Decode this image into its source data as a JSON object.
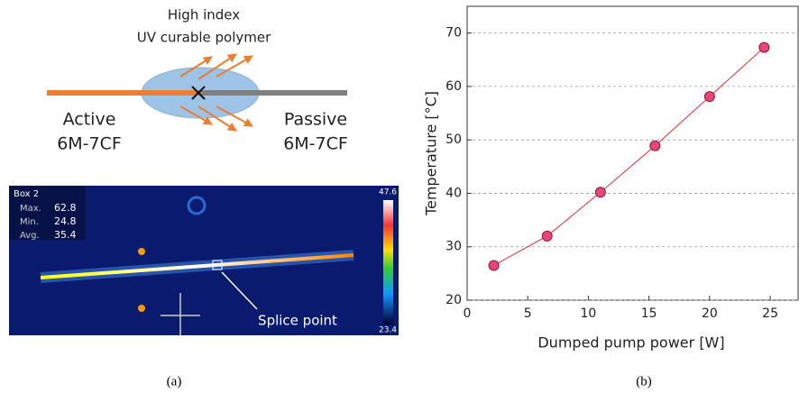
{
  "diagram": {
    "title_lines": [
      "High index",
      "UV curable polymer"
    ],
    "left_label": [
      "Active",
      "6M-7CF"
    ],
    "right_label": [
      "Passive",
      "6M-7CF"
    ]
  },
  "thermal": {
    "box": "Box 2",
    "stats": [
      [
        "Max.",
        62.8
      ],
      [
        "Min.",
        24.8
      ],
      [
        "Avg.",
        35.4
      ]
    ],
    "scale_max": 47.6,
    "scale_min": 23.4,
    "annotation": "Splice point"
  },
  "captions": [
    "(a)",
    "(b)"
  ],
  "chart_data": {
    "type": "line",
    "x_label": "Dumped pump power [W]",
    "y_label": "Temperature [°C]",
    "x": [
      2.2,
      6.6,
      11,
      15.5,
      20,
      24.5
    ],
    "series": [
      {
        "color": "#e8457a",
        "values": [
          26.5,
          32,
          40.2,
          48.9,
          58.1,
          67.3
        ]
      }
    ],
    "xlim": [
      0,
      27.3
    ],
    "ylim": [
      20,
      75
    ],
    "xticks": [
      0,
      5,
      10,
      15,
      20,
      25
    ],
    "yticks": [
      20,
      30,
      40,
      50,
      60,
      70
    ],
    "grid": true
  }
}
